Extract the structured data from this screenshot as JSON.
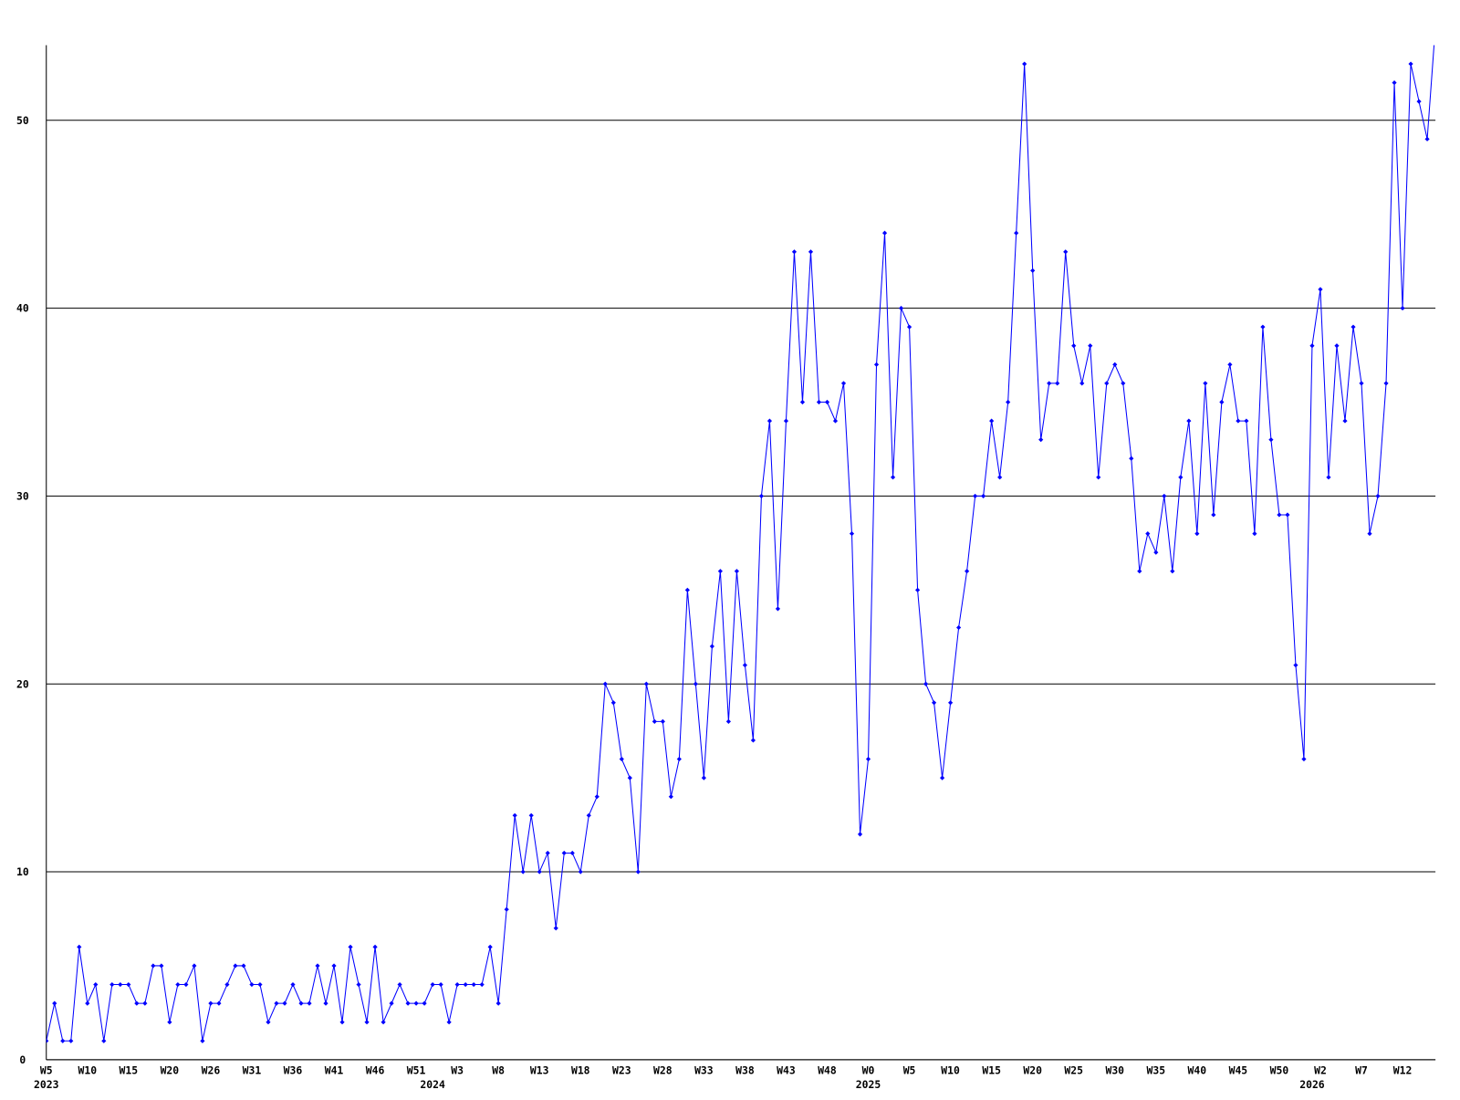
{
  "chart_data": {
    "type": "line",
    "categories": [
      "W5",
      null,
      null,
      null,
      null,
      "W10",
      null,
      null,
      null,
      null,
      "W15",
      null,
      null,
      null,
      null,
      "W20",
      null,
      null,
      null,
      null,
      "W26",
      null,
      null,
      null,
      null,
      "W31",
      null,
      null,
      null,
      null,
      "W36",
      null,
      null,
      null,
      null,
      "W41",
      null,
      null,
      null,
      null,
      "W46",
      null,
      null,
      null,
      null,
      "W51",
      null,
      null,
      null,
      null,
      "W3",
      null,
      null,
      null,
      null,
      "W8",
      null,
      null,
      null,
      null,
      "W13",
      null,
      null,
      null,
      null,
      "W18",
      null,
      null,
      null,
      null,
      "W23",
      null,
      null,
      null,
      null,
      "W28",
      null,
      null,
      null,
      null,
      "W33",
      null,
      null,
      null,
      null,
      "W38",
      null,
      null,
      null,
      null,
      "W43",
      null,
      null,
      null,
      null,
      "W48",
      null,
      null,
      null,
      null,
      "W0",
      null,
      null,
      null,
      null,
      "W5",
      null,
      null,
      null,
      null,
      "W10",
      null,
      null,
      null,
      null,
      "W15",
      null,
      null,
      null,
      null,
      "W20",
      null,
      null,
      null,
      null,
      "W25",
      null,
      null,
      null,
      null,
      "W30",
      null,
      null,
      null,
      null,
      "W35",
      null,
      null,
      null,
      null,
      "W40",
      null,
      null,
      null,
      null,
      "W45",
      null,
      null,
      null,
      null,
      "W50",
      null,
      null,
      null,
      null,
      "W2",
      null,
      null,
      null,
      null,
      "W7",
      null,
      null,
      null,
      null,
      "W12",
      null,
      null,
      null,
      null
    ],
    "category_groups": [
      "2023",
      null,
      null,
      null,
      null,
      null,
      null,
      null,
      null,
      null,
      null,
      null,
      null,
      null,
      null,
      null,
      null,
      null,
      null,
      null,
      null,
      null,
      null,
      null,
      null,
      null,
      null,
      null,
      null,
      null,
      null,
      null,
      null,
      null,
      null,
      null,
      null,
      null,
      null,
      null,
      null,
      null,
      null,
      null,
      null,
      null,
      null,
      "2024",
      null,
      null,
      null,
      null,
      null,
      null,
      null,
      null,
      null,
      null,
      null,
      null,
      null,
      null,
      null,
      null,
      null,
      null,
      null,
      null,
      null,
      null,
      null,
      null,
      null,
      null,
      null,
      null,
      null,
      null,
      null,
      null,
      null,
      null,
      null,
      null,
      null,
      null,
      null,
      null,
      null,
      null,
      null,
      null,
      null,
      null,
      null,
      null,
      null,
      null,
      null,
      null,
      "2025",
      null,
      null,
      null,
      null,
      null,
      null,
      null,
      null,
      null,
      null,
      null,
      null,
      null,
      null,
      null,
      null,
      null,
      null,
      null,
      null,
      null,
      null,
      null,
      null,
      null,
      null,
      null,
      null,
      null,
      null,
      null,
      null,
      null,
      null,
      null,
      null,
      null,
      null,
      null,
      null,
      null,
      null,
      null,
      null,
      null,
      null,
      null,
      null,
      null,
      null,
      null,
      null,
      null,
      "2026",
      null,
      null,
      null,
      null,
      null,
      null,
      null,
      null,
      null,
      null,
      null,
      null,
      null,
      null,
      null
    ],
    "series": [
      {
        "color": "#0000ff",
        "values": [
          1,
          3,
          1,
          1,
          6,
          3,
          4,
          1,
          4,
          4,
          4,
          3,
          3,
          5,
          5,
          2,
          4,
          4,
          5,
          1,
          3,
          3,
          4,
          5,
          5,
          4,
          4,
          2,
          3,
          3,
          4,
          3,
          3,
          5,
          3,
          5,
          2,
          6,
          4,
          2,
          6,
          2,
          3,
          4,
          3,
          3,
          3,
          4,
          4,
          2,
          4,
          4,
          4,
          4,
          6,
          3,
          8,
          13,
          10,
          13,
          10,
          11,
          7,
          11,
          11,
          10,
          13,
          14,
          20,
          19,
          16,
          15,
          10,
          20,
          18,
          18,
          14,
          16,
          25,
          20,
          15,
          22,
          26,
          18,
          26,
          21,
          17,
          30,
          34,
          24,
          34,
          43,
          35,
          43,
          35,
          35,
          34,
          36,
          28,
          12,
          16,
          37,
          44,
          31,
          40,
          39,
          25,
          20,
          19,
          15,
          19,
          23,
          26,
          30,
          30,
          34,
          31,
          35,
          44,
          53,
          42,
          33,
          36,
          36,
          43,
          38,
          36,
          38,
          31,
          36,
          37,
          36,
          32,
          26,
          28,
          27,
          30,
          26,
          31,
          34,
          28,
          36,
          29,
          35,
          37,
          34,
          34,
          28,
          39,
          33,
          29,
          29,
          21,
          16,
          38,
          41,
          31,
          38,
          34,
          39,
          36,
          28,
          30,
          36,
          52,
          40,
          53,
          51,
          49,
          55
        ]
      }
    ],
    "ylim": [
      0,
      54
    ],
    "yticks": [
      0,
      10,
      20,
      30,
      40,
      50
    ],
    "grid": true
  }
}
